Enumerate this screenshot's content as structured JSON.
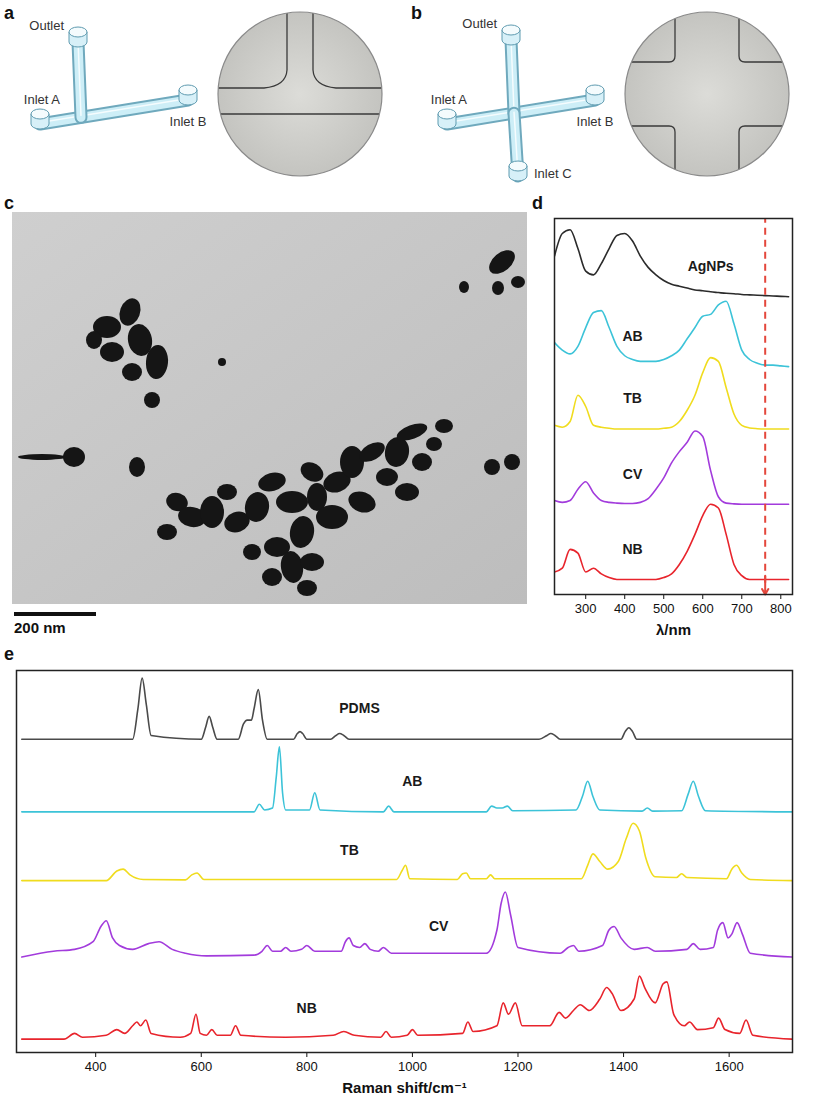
{
  "figure": {
    "panels": [
      {
        "letter": "a",
        "type": "diagram",
        "labels": {
          "outlet": "Outlet",
          "inlets": [
            "Inlet A",
            "Inlet B"
          ]
        }
      },
      {
        "letter": "b",
        "type": "diagram",
        "labels": {
          "outlet": "Outlet",
          "inlets": [
            "Inlet A",
            "Inlet B",
            "Inlet C"
          ]
        }
      },
      {
        "letter": "c",
        "type": "micrograph",
        "scale_bar": "200 nm"
      }
    ]
  },
  "chart_data": [
    {
      "panel": "d",
      "type": "line",
      "xlabel": "λ/nm",
      "xlim": [
        220,
        830
      ],
      "xticks": [
        300,
        400,
        500,
        600,
        700,
        800
      ],
      "ylim": [
        0,
        100
      ],
      "tick_labels": "x",
      "x": [
        220,
        240,
        260,
        280,
        300,
        320,
        340,
        360,
        380,
        400,
        420,
        440,
        460,
        480,
        500,
        520,
        540,
        560,
        580,
        600,
        620,
        640,
        660,
        680,
        700,
        720,
        740,
        760,
        780,
        800,
        820
      ],
      "series": [
        {
          "name": "AgNPs",
          "color": "#2b2b2b",
          "values": [
            90,
            96,
            97,
            92,
            86,
            85,
            88,
            92,
            95.5,
            96,
            94,
            90,
            87,
            85,
            83.5,
            82.5,
            82,
            81.5,
            81,
            80.8,
            80.5,
            80.3,
            80.1,
            80,
            79.8,
            79.7,
            79.6,
            79.5,
            79.4,
            79.3,
            79.2
          ]
        },
        {
          "name": "AB",
          "color": "#3cc3d8",
          "values": [
            67,
            65,
            64,
            66,
            71,
            75,
            75.5,
            71,
            66,
            63.5,
            62.5,
            62,
            62,
            62,
            62.5,
            63.5,
            65,
            68,
            71,
            74,
            74.5,
            77,
            78,
            72,
            65,
            62.5,
            61.5,
            61,
            61,
            60.8,
            60.6
          ]
        },
        {
          "name": "TB",
          "color": "#f0dc1e",
          "values": [
            45,
            44.5,
            46,
            53,
            50,
            45,
            44.5,
            44.2,
            44,
            44,
            44,
            44,
            44,
            44,
            44.2,
            44.5,
            46,
            49,
            53,
            59,
            63,
            62,
            55,
            48,
            45,
            44.3,
            44.1,
            44,
            44,
            44,
            44
          ]
        },
        {
          "name": "CV",
          "color": "#a23bdc",
          "values": [
            25,
            24.5,
            25,
            28,
            30,
            27,
            25,
            24.5,
            24.3,
            24.2,
            24.2,
            24.5,
            25.5,
            28,
            31,
            35,
            38,
            40.5,
            43.5,
            42,
            33,
            26,
            24.3,
            24.1,
            24,
            24,
            24,
            24,
            24,
            24,
            24
          ]
        },
        {
          "name": "NB",
          "color": "#e8242c",
          "values": [
            6,
            7,
            12,
            11,
            6,
            7,
            5.5,
            4.5,
            4,
            4,
            4,
            4,
            4,
            4,
            4.5,
            5.5,
            8,
            11.5,
            16,
            21,
            24,
            23,
            16,
            8,
            5,
            4,
            4,
            4,
            4,
            4,
            4
          ]
        }
      ],
      "reference_line": {
        "x": 760,
        "color": "#e4473c",
        "line_style": "dashed",
        "marker": "arrow"
      }
    },
    {
      "panel": "e",
      "type": "line",
      "xlabel": "Raman shift/cm⁻¹",
      "xlim": [
        250,
        1720
      ],
      "xticks": [
        400,
        600,
        800,
        1000,
        1200,
        1400,
        1600
      ],
      "ylim": [
        0,
        100
      ],
      "tick_labels": "x",
      "series": [
        {
          "name": "PDMS",
          "color": "#4a4a4a",
          "x": [
            260,
            470,
            480,
            488,
            496,
            505,
            600,
            608,
            615,
            622,
            630,
            670,
            680,
            687,
            695,
            700,
            708,
            716,
            725,
            775,
            782,
            787,
            792,
            800,
            845,
            855,
            862,
            870,
            880,
            1240,
            1255,
            1262,
            1270,
            1280,
            1395,
            1403,
            1410,
            1417,
            1425,
            1720
          ],
          "values": [
            82,
            82,
            90,
            98,
            91,
            83,
            82,
            85,
            88,
            85,
            82,
            82,
            86,
            87,
            87,
            90,
            95,
            87,
            82,
            82,
            83.5,
            84,
            83.5,
            82,
            82,
            83,
            83.5,
            83,
            82,
            82,
            83,
            83.5,
            83,
            82,
            82,
            84,
            85,
            84,
            82,
            82
          ]
        },
        {
          "name": "AB",
          "color": "#3cc3d8",
          "x": [
            260,
            700,
            710,
            720,
            735,
            742,
            748,
            754,
            760,
            805,
            815,
            825,
            945,
            955,
            965,
            1140,
            1150,
            1160,
            1170,
            1180,
            1190,
            1310,
            1322,
            1332,
            1342,
            1355,
            1435,
            1445,
            1455,
            1510,
            1522,
            1532,
            1542,
            1555,
            1720
          ],
          "values": [
            63,
            63,
            65,
            63.5,
            64,
            72,
            80,
            68,
            63.5,
            63.5,
            68,
            63.5,
            63,
            64.5,
            63,
            63,
            64.5,
            64,
            64,
            64.5,
            63.3,
            63.5,
            67,
            71,
            67,
            63.5,
            63.2,
            64,
            63.2,
            63.3,
            67.5,
            71,
            67,
            63.3,
            63
          ]
        },
        {
          "name": "TB",
          "color": "#f0dc1e",
          "x": [
            260,
            420,
            440,
            452,
            465,
            490,
            570,
            582,
            592,
            605,
            970,
            980,
            987,
            995,
            1085,
            1095,
            1102,
            1110,
            1140,
            1148,
            1156,
            1320,
            1332,
            1342,
            1355,
            1370,
            1390,
            1405,
            1418,
            1430,
            1442,
            1460,
            1500,
            1510,
            1520,
            1595,
            1605,
            1614,
            1624,
            1640,
            1720
          ],
          "values": [
            45,
            45,
            47.5,
            48,
            46.5,
            45.3,
            45.2,
            46.5,
            47,
            45.3,
            45.3,
            47.5,
            49,
            45.5,
            45.3,
            46.8,
            47,
            45.5,
            45.5,
            46.5,
            45.5,
            45.5,
            49,
            52,
            50,
            48,
            50,
            56,
            60,
            58,
            51,
            46,
            45.8,
            46.8,
            45.8,
            45.5,
            48,
            49,
            47,
            45.3,
            45
          ]
        },
        {
          "name": "CV",
          "color": "#a23bdc",
          "x": [
            260,
            320,
            360,
            395,
            410,
            420,
            432,
            445,
            470,
            500,
            520,
            545,
            570,
            610,
            700,
            715,
            725,
            735,
            750,
            760,
            770,
            790,
            800,
            815,
            865,
            873,
            880,
            888,
            900,
            910,
            920,
            935,
            945,
            960,
            1140,
            1160,
            1168,
            1176,
            1186,
            1200,
            1280,
            1295,
            1305,
            1315,
            1360,
            1372,
            1382,
            1395,
            1420,
            1445,
            1460,
            1520,
            1532,
            1545,
            1570,
            1578,
            1588,
            1598,
            1605,
            1615,
            1625,
            1640,
            1720
          ],
          "values": [
            25,
            26.5,
            27,
            29,
            33,
            34.5,
            30,
            28,
            27,
            28.5,
            29,
            27,
            26,
            25.3,
            25.5,
            26.5,
            28,
            26.5,
            26.5,
            27.5,
            26.5,
            27,
            28,
            26.5,
            26.5,
            29,
            30,
            28,
            27.5,
            28.5,
            27,
            26.5,
            27.5,
            26,
            26,
            32,
            39,
            42,
            36,
            27.5,
            26,
            27.5,
            28,
            26.5,
            28,
            32,
            33,
            30,
            27,
            27.5,
            26.5,
            27,
            28.5,
            27,
            27.5,
            32,
            34,
            30,
            31,
            34,
            31,
            26,
            25
          ]
        },
        {
          "name": "NB",
          "color": "#e8242c",
          "x": [
            260,
            340,
            360,
            375,
            420,
            440,
            455,
            470,
            478,
            485,
            495,
            505,
            560,
            580,
            590,
            598,
            610,
            620,
            630,
            655,
            665,
            675,
            760,
            850,
            870,
            890,
            940,
            950,
            960,
            990,
            1000,
            1010,
            1095,
            1105,
            1115,
            1160,
            1172,
            1182,
            1195,
            1208,
            1260,
            1278,
            1290,
            1305,
            1318,
            1335,
            1355,
            1368,
            1378,
            1395,
            1420,
            1430,
            1440,
            1460,
            1475,
            1482,
            1495,
            1515,
            1525,
            1540,
            1570,
            1580,
            1592,
            1620,
            1632,
            1645,
            1720
          ],
          "values": [
            3.5,
            3.5,
            5,
            4,
            4.5,
            6,
            5,
            7,
            8,
            7,
            8.5,
            5,
            4,
            5,
            10,
            5,
            4.5,
            6,
            4.5,
            4.5,
            7,
            4.5,
            4,
            4.5,
            5.5,
            4.5,
            4,
            5.5,
            4,
            4.5,
            6,
            4.5,
            5,
            8,
            5.5,
            7,
            13,
            10,
            13,
            7,
            7,
            10.5,
            9,
            11,
            12.5,
            11,
            14,
            17,
            15.5,
            11,
            14,
            20,
            17,
            13,
            18,
            18.5,
            10,
            7,
            8,
            6,
            6.5,
            9,
            6,
            5,
            8.5,
            4.5,
            3.5
          ]
        }
      ]
    }
  ]
}
